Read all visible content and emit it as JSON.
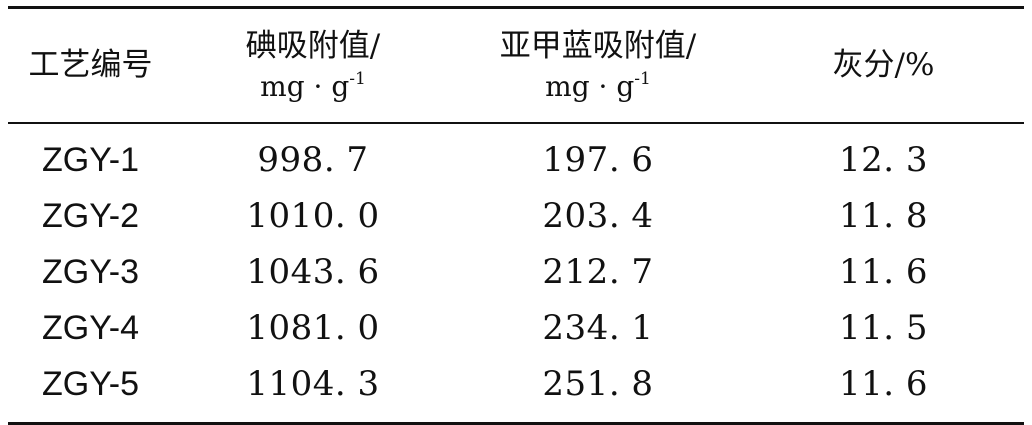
{
  "table": {
    "headers": {
      "process_no": "工艺编号",
      "iodine_label": "碘吸附值/",
      "iodine_unit_base": "mg · g",
      "iodine_unit_exp": "-1",
      "mb_label": "亚甲蓝吸附值/",
      "mb_unit_base": "mg · g",
      "mb_unit_exp": "-1",
      "ash": "灰分/%"
    },
    "rows": [
      {
        "code": "ZGY-1",
        "iodine": "998. 7",
        "methylene_blue": "197. 6",
        "ash": "12. 3"
      },
      {
        "code": "ZGY-2",
        "iodine": "1010. 0",
        "methylene_blue": "203. 4",
        "ash": "11. 8"
      },
      {
        "code": "ZGY-3",
        "iodine": "1043. 6",
        "methylene_blue": "212. 7",
        "ash": "11. 6"
      },
      {
        "code": "ZGY-4",
        "iodine": "1081. 0",
        "methylene_blue": "234. 1",
        "ash": "11. 5"
      },
      {
        "code": "ZGY-5",
        "iodine": "1104. 3",
        "methylene_blue": "251. 8",
        "ash": "11. 6"
      }
    ]
  }
}
